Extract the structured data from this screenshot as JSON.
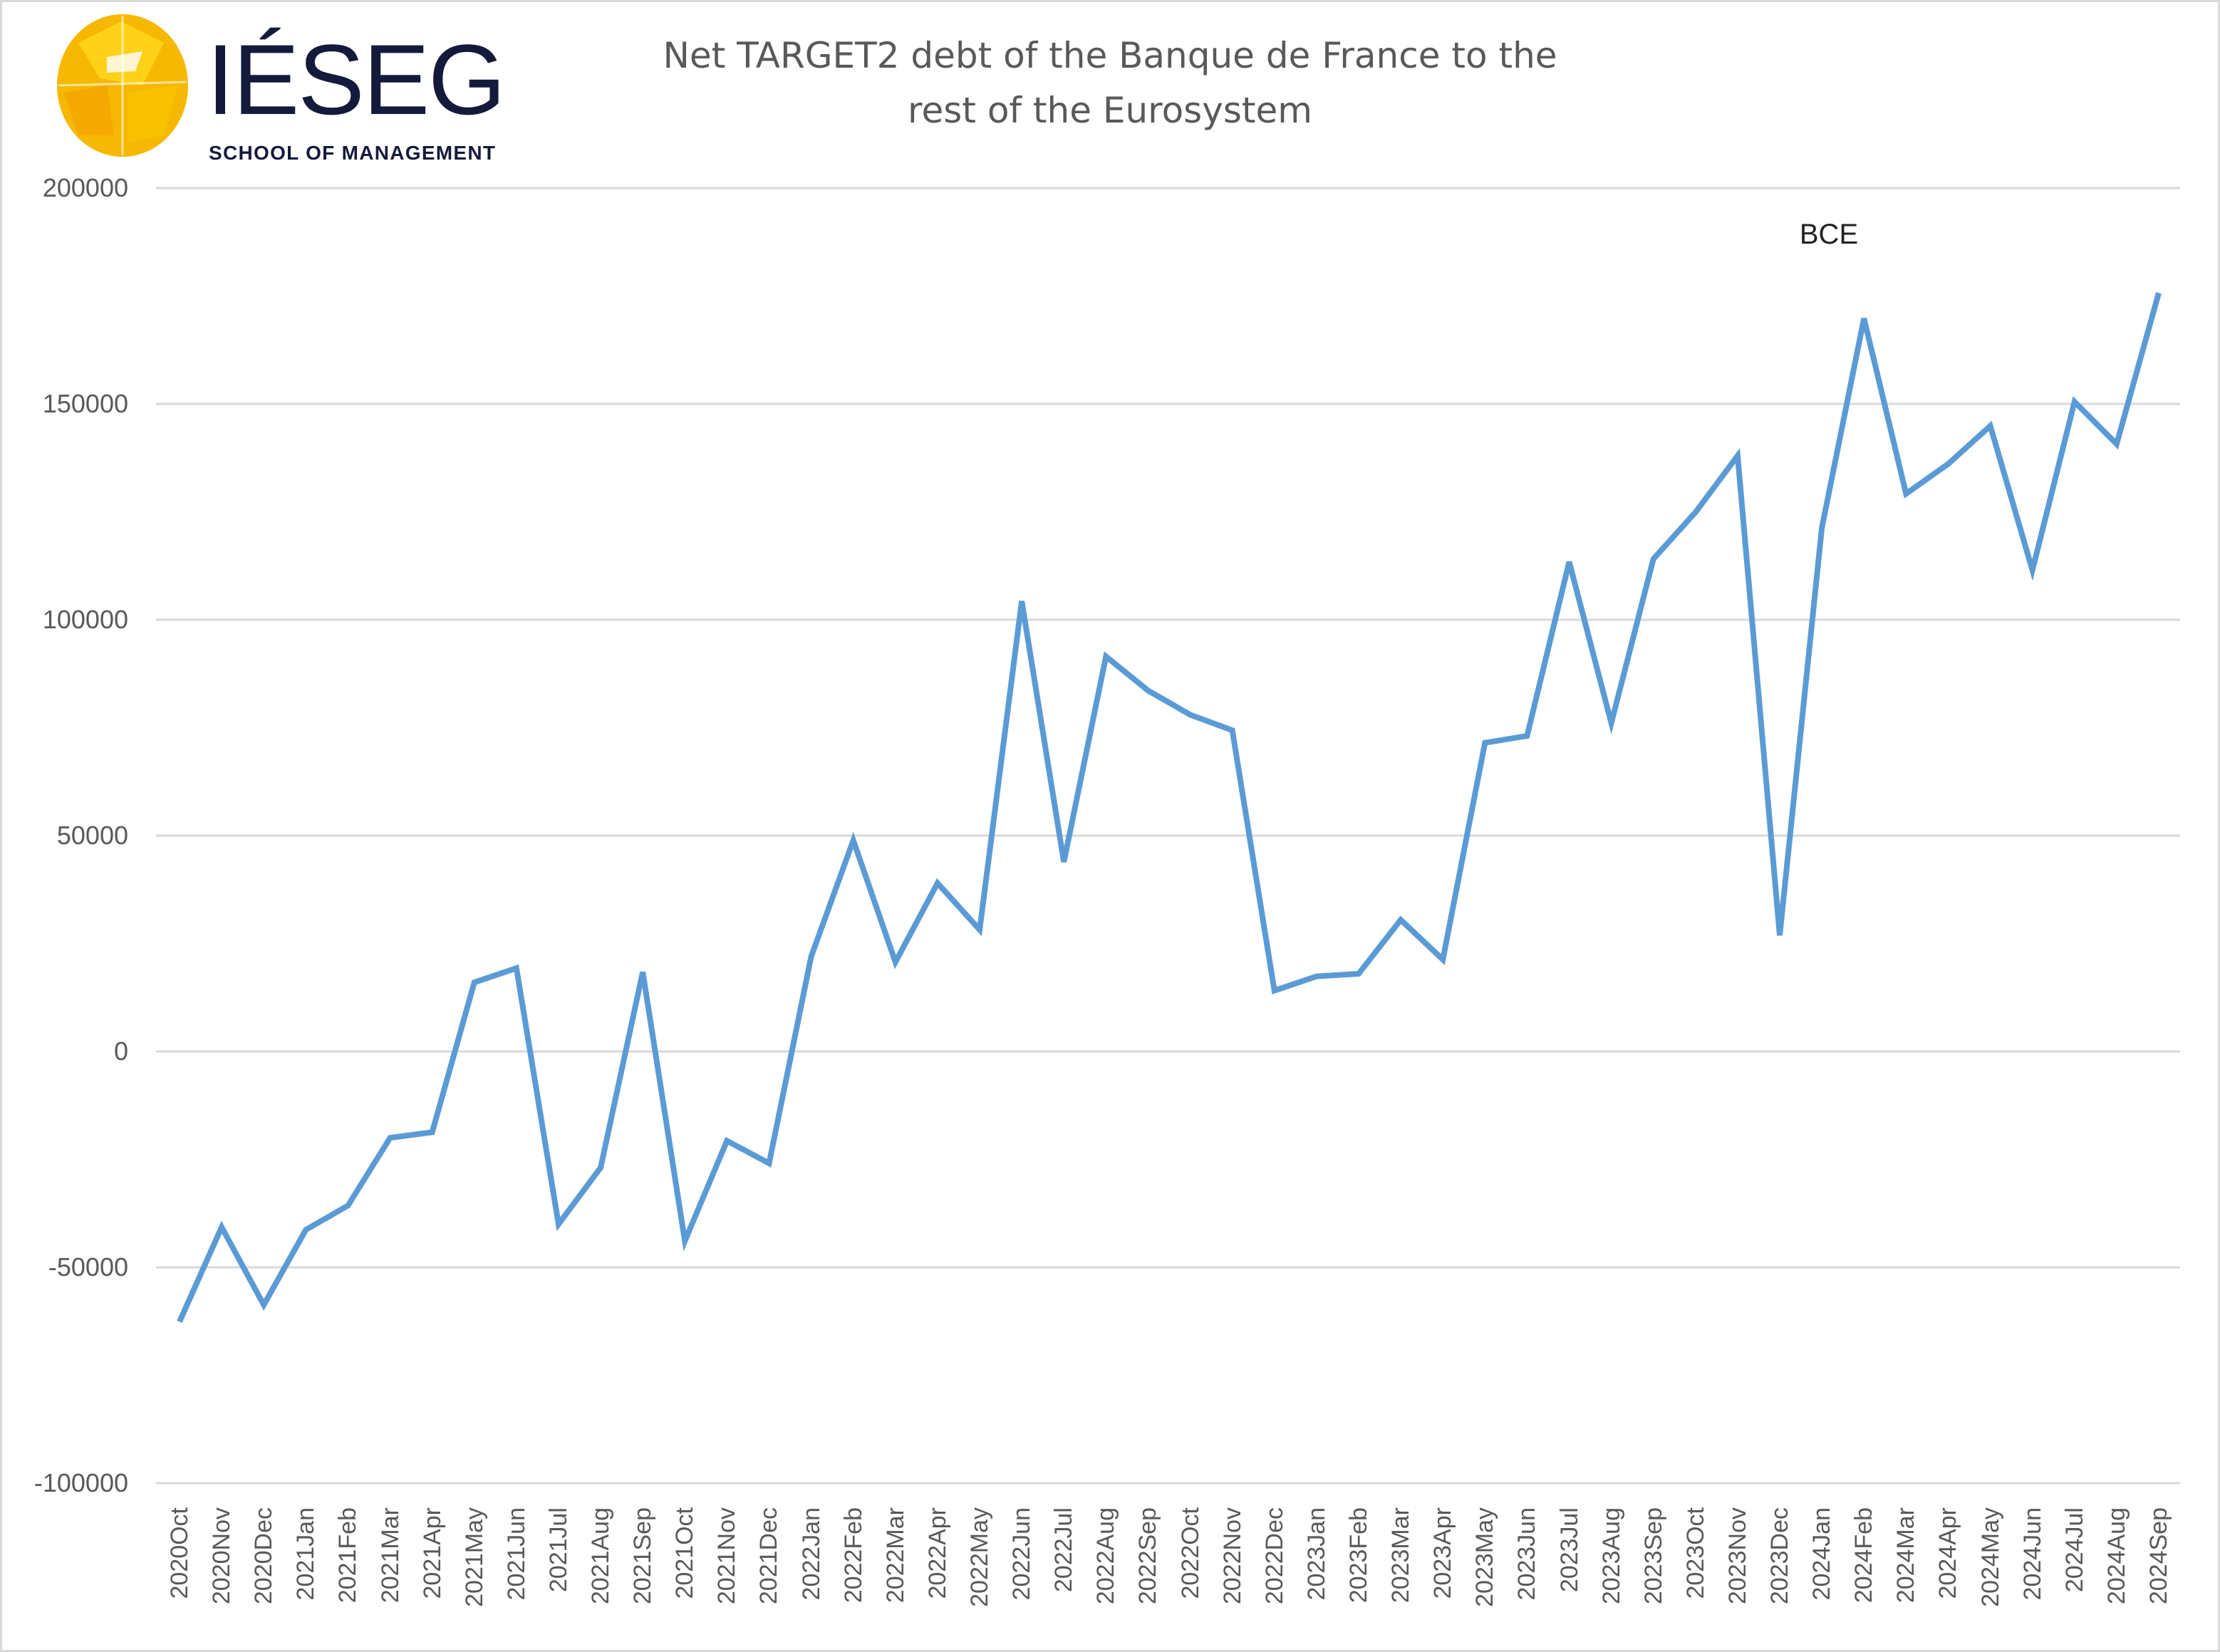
{
  "logo": {
    "text": "IÉSEG",
    "subtitle": "SCHOOL OF MANAGEMENT"
  },
  "chart_data": {
    "type": "line",
    "title_lines": [
      "Net TARGET2 debt of the Banque de France to the",
      "rest of the Eurosystem"
    ],
    "xlabel": "",
    "ylabel": "",
    "ylim": [
      -100000,
      200000
    ],
    "yticks": [
      -100000,
      -50000,
      0,
      50000,
      100000,
      150000,
      200000
    ],
    "ytick_labels": [
      "-100000",
      "-50000",
      "0",
      "50000",
      "100000",
      "150000",
      "200000"
    ],
    "grid": "horizontal",
    "line_color": "#5B9BD5",
    "annotations": [
      {
        "text": "BCE",
        "near": "2024Feb"
      }
    ],
    "categories": [
      "2020Oct",
      "2020Nov",
      "2020Dec",
      "2021Jan",
      "2021Feb",
      "2021Mar",
      "2021Apr",
      "2021May",
      "2021Jun",
      "2021Jul",
      "2021Aug",
      "2021Sep",
      "2021Oct",
      "2021Nov",
      "2021Dec",
      "2022Jan",
      "2022Feb",
      "2022Mar",
      "2022Apr",
      "2022May",
      "2022Jun",
      "2022Jul",
      "2022Aug",
      "2022Sep",
      "2022Oct",
      "2022Nov",
      "2022Dec",
      "2023Jan",
      "2023Feb",
      "2023Mar",
      "2023Apr",
      "2023May",
      "2023Jun",
      "2023Jul",
      "2023Aug",
      "2023Sep",
      "2023Oct",
      "2023Nov",
      "2023Dec",
      "2024Jan",
      "2024Feb",
      "2024Mar",
      "2024Apr",
      "2024May",
      "2024Jun",
      "2024Jul",
      "2024Aug",
      "2024Sep"
    ],
    "values": [
      -62600,
      -40700,
      -58700,
      -41300,
      -35700,
      -20000,
      -18700,
      16000,
      19300,
      -40000,
      -26900,
      18400,
      -43900,
      -20700,
      -25900,
      22000,
      48900,
      20700,
      39000,
      28200,
      104300,
      43900,
      91500,
      83600,
      78000,
      74400,
      14100,
      17400,
      18000,
      30500,
      21300,
      71500,
      73100,
      113400,
      76100,
      114100,
      124900,
      138000,
      26900,
      121300,
      169800,
      129200,
      136100,
      144900,
      111500,
      150500,
      140700,
      175700
    ]
  }
}
